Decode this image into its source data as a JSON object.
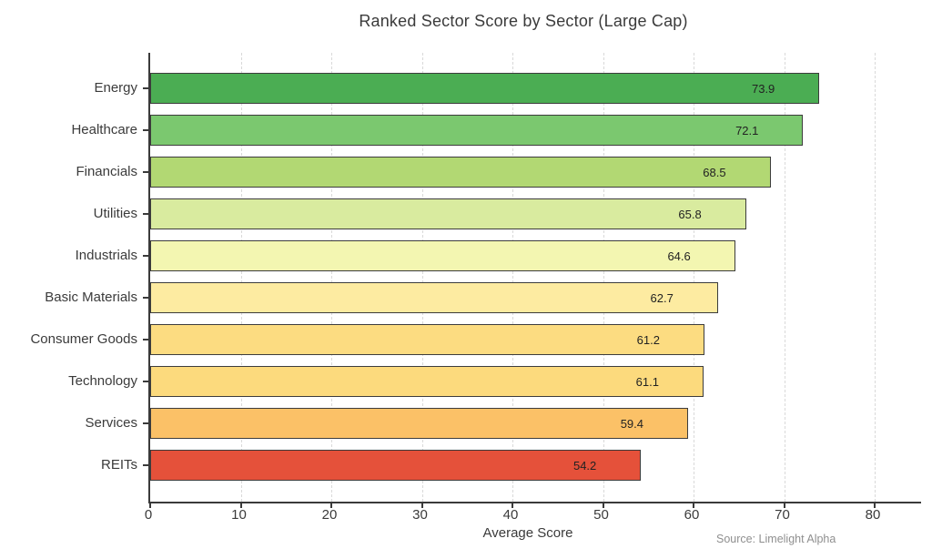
{
  "title": "Ranked Sector Score by Sector (Large Cap)",
  "source_note": "Source: Limelight Alpha",
  "chart_data": {
    "type": "bar",
    "orientation": "horizontal",
    "title": "Ranked Sector Score by Sector (Large Cap)",
    "categories": [
      "Energy",
      "Healthcare",
      "Financials",
      "Utilities",
      "Industrials",
      "Basic Materials",
      "Consumer Goods",
      "Technology",
      "Services",
      "REITs"
    ],
    "values": [
      73.9,
      72.1,
      68.5,
      65.8,
      64.6,
      62.7,
      61.2,
      61.1,
      59.4,
      54.2
    ],
    "bar_colors": [
      "#4bad53",
      "#7bc86f",
      "#b2d873",
      "#d9eb9f",
      "#f3f6b1",
      "#fdeba1",
      "#fcdc81",
      "#fcda7d",
      "#fbc167",
      "#e5513a"
    ],
    "bar_edge_color": "#3c3c3c",
    "xlabel": "Average Score",
    "ylabel": "",
    "xlim": [
      0,
      85.1
    ],
    "xticks": [
      0,
      10,
      20,
      30,
      40,
      50,
      60,
      70,
      80
    ],
    "grid": "vertical-dashed",
    "grid_color": "#d9d9d9",
    "legend": "none",
    "source": "Source: Limelight Alpha"
  }
}
